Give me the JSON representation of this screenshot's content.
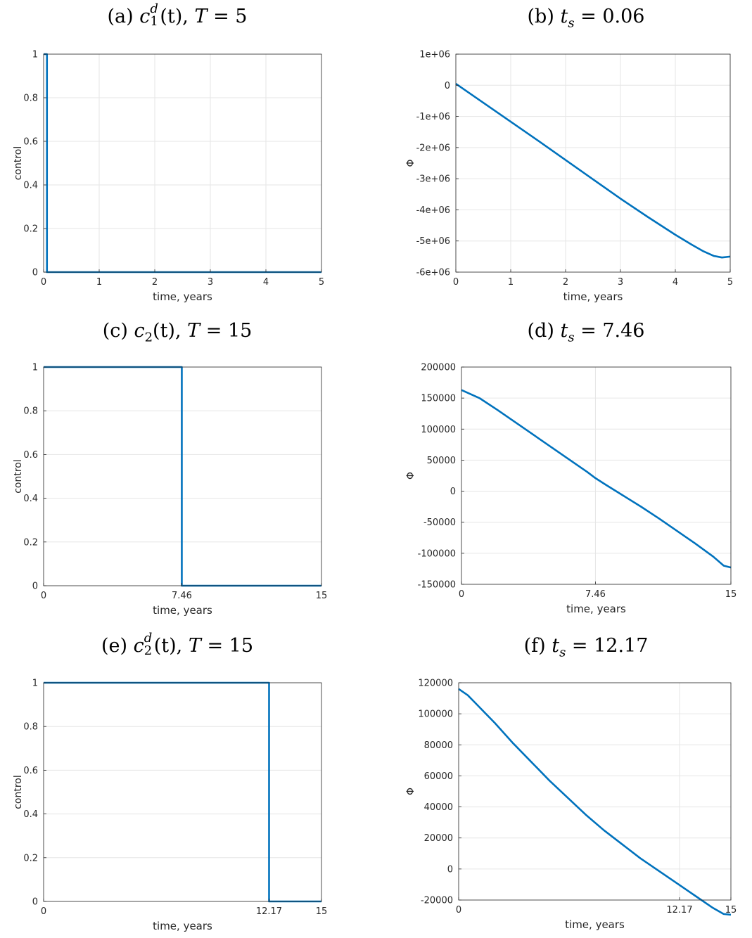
{
  "colors": {
    "line": "#0072BD",
    "grid": "#e6e6e6",
    "axis": "#262626"
  },
  "panels": [
    {
      "title": {
        "prefix": "(a) ",
        "var": "c",
        "sub": "1",
        "sup": "d",
        "arg": "(t), ",
        "tvar": "T",
        "rest": " = 5"
      },
      "chart_data": {
        "type": "line",
        "xlabel": "time, years",
        "ylabel": "control",
        "xlim": [
          0,
          5
        ],
        "ylim": [
          0,
          1
        ],
        "xticks": [
          0,
          1,
          2,
          3,
          4,
          5
        ],
        "xtick_labels": [
          "0",
          "1",
          "2",
          "3",
          "4",
          "5"
        ],
        "yticks": [
          0,
          0.2,
          0.4,
          0.6,
          0.8,
          1
        ],
        "ytick_labels": [
          "0",
          "0.2",
          "0.4",
          "0.6",
          "0.8",
          "1"
        ],
        "grid": true,
        "series": [
          {
            "x": [
              0,
              0.06,
              0.06,
              5
            ],
            "y": [
              1,
              1,
              0,
              0
            ]
          }
        ]
      }
    },
    {
      "title": {
        "prefix": "(b) ",
        "var": "t",
        "sub": "s",
        "sup": "",
        "arg": "",
        "tvar": "",
        "rest": " = 0.06"
      },
      "chart_data": {
        "type": "line",
        "xlabel": "time, years",
        "ylabel": "Φ",
        "xlim": [
          0,
          5
        ],
        "ylim": [
          -6000000,
          1000000
        ],
        "xticks": [
          0,
          1,
          2,
          3,
          4,
          5
        ],
        "xtick_labels": [
          "0",
          "1",
          "2",
          "3",
          "4",
          "5"
        ],
        "yticks": [
          1000000,
          0,
          -1000000,
          -2000000,
          -3000000,
          -4000000,
          -5000000,
          -6000000
        ],
        "ytick_labels": [
          "1e+06",
          "0",
          "-1e+06",
          "-2e+06",
          "-3e+06",
          "-4e+06",
          "-5e+06",
          "-6e+06"
        ],
        "grid": true,
        "series": [
          {
            "x": [
              0,
              0.5,
              1,
              1.5,
              2,
              2.5,
              3,
              3.5,
              4,
              4.3,
              4.5,
              4.7,
              4.85,
              5
            ],
            "y": [
              50000,
              -560000,
              -1170000,
              -1780000,
              -2400000,
              -3020000,
              -3640000,
              -4230000,
              -4800000,
              -5120000,
              -5320000,
              -5480000,
              -5530000,
              -5500000
            ]
          }
        ]
      }
    },
    {
      "title": {
        "prefix": "(c) ",
        "var": "c",
        "sub": "2",
        "sup": "",
        "arg": "(t), ",
        "tvar": "T",
        "rest": " = 15"
      },
      "chart_data": {
        "type": "line",
        "xlabel": "time, years",
        "ylabel": "control",
        "xlim": [
          0,
          15
        ],
        "ylim": [
          0,
          1
        ],
        "xticks": [
          0,
          7.46,
          15
        ],
        "xtick_labels": [
          "0",
          "7.46",
          "15"
        ],
        "yticks": [
          0,
          0.2,
          0.4,
          0.6,
          0.8,
          1
        ],
        "ytick_labels": [
          "0",
          "0.2",
          "0.4",
          "0.6",
          "0.8",
          "1"
        ],
        "grid": true,
        "series": [
          {
            "x": [
              0,
              7.46,
              7.46,
              15
            ],
            "y": [
              1,
              1,
              0,
              0
            ]
          }
        ]
      }
    },
    {
      "title": {
        "prefix": "(d) ",
        "var": "t",
        "sub": "s",
        "sup": "",
        "arg": "",
        "tvar": "",
        "rest": " = 7.46"
      },
      "chart_data": {
        "type": "line",
        "xlabel": "time, years",
        "ylabel": "Φ",
        "xlim": [
          0,
          15
        ],
        "ylim": [
          -150000,
          200000
        ],
        "xticks": [
          0,
          7.46,
          15
        ],
        "xtick_labels": [
          "0",
          "7.46",
          "15"
        ],
        "yticks": [
          200000,
          150000,
          100000,
          50000,
          0,
          -50000,
          -100000,
          -150000
        ],
        "ytick_labels": [
          "200000",
          "150000",
          "100000",
          "50000",
          "0",
          "-50000",
          "-100000",
          "-150000"
        ],
        "grid": true,
        "series": [
          {
            "x": [
              0,
              1,
              2,
              3,
              4,
              5,
              6,
              7,
              7.46,
              8,
              9,
              10,
              11,
              12,
              13,
              14,
              14.6,
              15
            ],
            "y": [
              163000,
              150000,
              131000,
              111000,
              91000,
              71000,
              51000,
              31000,
              21000,
              11000,
              -7000,
              -25000,
              -44000,
              -64000,
              -84000,
              -105000,
              -120000,
              -123000
            ]
          }
        ]
      }
    },
    {
      "title": {
        "prefix": "(e) ",
        "var": "c",
        "sub": "2",
        "sup": "d",
        "arg": "(t), ",
        "tvar": "T",
        "rest": " = 15"
      },
      "chart_data": {
        "type": "line",
        "xlabel": "time, years",
        "ylabel": "control",
        "xlim": [
          0,
          15
        ],
        "ylim": [
          0,
          1
        ],
        "xticks": [
          0,
          12.17,
          15
        ],
        "xtick_labels": [
          "0",
          "12.17",
          "15"
        ],
        "yticks": [
          0,
          0.2,
          0.4,
          0.6,
          0.8,
          1
        ],
        "ytick_labels": [
          "0",
          "0.2",
          "0.4",
          "0.6",
          "0.8",
          "1"
        ],
        "grid": true,
        "series": [
          {
            "x": [
              0,
              12.17,
              12.17,
              15
            ],
            "y": [
              1,
              1,
              0,
              0
            ]
          }
        ]
      }
    },
    {
      "title": {
        "prefix": "(f) ",
        "var": "t",
        "sub": "s",
        "sup": "",
        "arg": "",
        "tvar": "",
        "rest": " = 12.17"
      },
      "chart_data": {
        "type": "line",
        "xlabel": "time, years",
        "ylabel": "Φ",
        "xlim": [
          0,
          15
        ],
        "ylim": [
          -20000,
          120000
        ],
        "xticks": [
          0,
          12.17,
          15
        ],
        "xtick_labels": [
          "0",
          "12.17",
          "15"
        ],
        "yticks": [
          120000,
          100000,
          80000,
          60000,
          40000,
          20000,
          0,
          -20000
        ],
        "ytick_labels": [
          "120000",
          "100000",
          "80000",
          "60000",
          "40000",
          "20000",
          "0",
          "-20000"
        ],
        "grid": true,
        "series": [
          {
            "x": [
              0,
              0.5,
              1,
              2,
              3,
              4,
              5,
              6,
              7,
              8,
              9,
              10,
              11,
              12,
              13,
              14,
              14.6,
              15
            ],
            "y": [
              116000,
              112000,
              106000,
              94000,
              81000,
              69000,
              57000,
              46000,
              35000,
              25000,
              16000,
              7000,
              -1000,
              -9000,
              -17000,
              -25000,
              -29000,
              -29500
            ]
          }
        ]
      }
    }
  ]
}
